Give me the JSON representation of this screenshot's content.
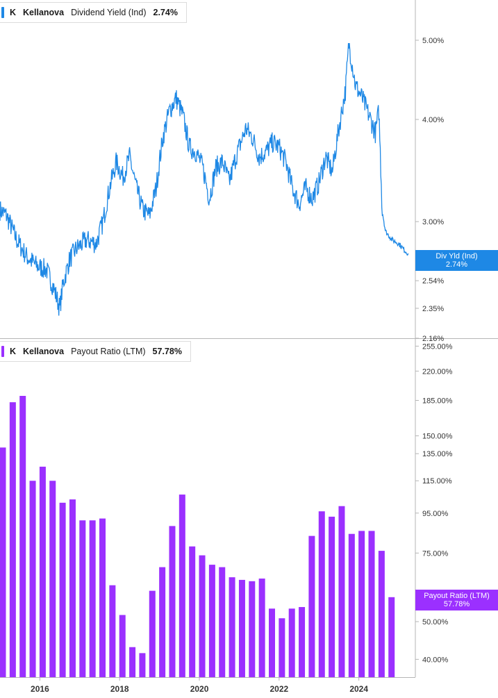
{
  "colors": {
    "dividend_line": "#1e88e5",
    "payout_bar": "#9b30ff",
    "axis": "#b5b5b5",
    "label": "#333333"
  },
  "top_legend": {
    "ticker": "K",
    "company": "Kellanova",
    "metric": "Dividend Yield (Ind)",
    "value": "2.74%"
  },
  "bottom_legend": {
    "ticker": "K",
    "company": "Kellanova",
    "metric": "Payout Ratio (LTM)",
    "value": "57.78%"
  },
  "top_badge": {
    "label": "Div Yld (Ind)",
    "value": "2.74%"
  },
  "bottom_badge": {
    "label": "Payout Ratio (LTM)",
    "value": "57.78%"
  },
  "chart_data": [
    {
      "type": "line",
      "scale": "log",
      "series": [
        {
          "name": "Dividend Yield (Ind)",
          "points": [
            [
              "2015-01",
              3.1
            ],
            [
              "2015-03",
              3.05
            ],
            [
              "2015-06",
              2.85
            ],
            [
              "2015-09",
              2.72
            ],
            [
              "2015-12",
              2.65
            ],
            [
              "2016-03",
              2.62
            ],
            [
              "2016-05",
              2.5
            ],
            [
              "2016-07",
              2.35
            ],
            [
              "2016-08",
              2.52
            ],
            [
              "2016-10",
              2.7
            ],
            [
              "2016-12",
              2.78
            ],
            [
              "2017-03",
              2.85
            ],
            [
              "2017-06",
              2.82
            ],
            [
              "2017-08",
              3.0
            ],
            [
              "2017-10",
              3.3
            ],
            [
              "2017-12",
              3.55
            ],
            [
              "2018-02",
              3.4
            ],
            [
              "2018-04",
              3.6
            ],
            [
              "2018-06",
              3.3
            ],
            [
              "2018-08",
              3.1
            ],
            [
              "2018-10",
              3.05
            ],
            [
              "2018-12",
              3.3
            ],
            [
              "2019-02",
              3.8
            ],
            [
              "2019-04",
              4.1
            ],
            [
              "2019-06",
              4.25
            ],
            [
              "2019-08",
              4.05
            ],
            [
              "2019-10",
              3.7
            ],
            [
              "2019-12",
              3.65
            ],
            [
              "2020-02",
              3.5
            ],
            [
              "2020-04",
              3.2
            ],
            [
              "2020-06",
              3.5
            ],
            [
              "2020-08",
              3.55
            ],
            [
              "2020-10",
              3.35
            ],
            [
              "2020-12",
              3.6
            ],
            [
              "2021-03",
              3.9
            ],
            [
              "2021-05",
              3.8
            ],
            [
              "2021-07",
              3.6
            ],
            [
              "2021-09",
              3.65
            ],
            [
              "2021-11",
              3.75
            ],
            [
              "2022-01",
              3.7
            ],
            [
              "2022-03",
              3.55
            ],
            [
              "2022-05",
              3.3
            ],
            [
              "2022-07",
              3.15
            ],
            [
              "2022-09",
              3.3
            ],
            [
              "2022-11",
              3.2
            ],
            [
              "2023-01",
              3.35
            ],
            [
              "2023-03",
              3.6
            ],
            [
              "2023-05",
              3.45
            ],
            [
              "2023-07",
              3.9
            ],
            [
              "2023-09",
              4.35
            ],
            [
              "2023-10",
              4.95
            ],
            [
              "2023-12",
              4.4
            ],
            [
              "2024-02",
              4.25
            ],
            [
              "2024-04",
              4.05
            ],
            [
              "2024-06",
              3.85
            ],
            [
              "2024-07",
              4.1
            ],
            [
              "2024-08",
              3.1
            ],
            [
              "2024-09",
              2.92
            ],
            [
              "2024-11",
              2.85
            ],
            [
              "2025-01",
              2.82
            ],
            [
              "2025-03",
              2.76
            ],
            [
              "2025-04",
              2.74
            ]
          ]
        }
      ],
      "yticks": [
        "5.00%",
        "4.00%",
        "3.00%",
        "2.54%",
        "2.35%",
        "2.16%"
      ],
      "ylim": [
        2.16,
        5.6
      ],
      "xlim": [
        "2015-01",
        "2025-06"
      ]
    },
    {
      "type": "bar",
      "scale": "log",
      "series": [
        {
          "name": "Payout Ratio (LTM)",
          "points": [
            [
              "2015-01",
              140
            ],
            [
              "2015-04",
              183
            ],
            [
              "2015-07",
              190
            ],
            [
              "2015-10",
              115
            ],
            [
              "2016-01",
              125
            ],
            [
              "2016-04",
              115
            ],
            [
              "2016-07",
              101
            ],
            [
              "2016-10",
              103
            ],
            [
              "2017-01",
              91
            ],
            [
              "2017-04",
              91
            ],
            [
              "2017-07",
              92
            ],
            [
              "2017-10",
              62
            ],
            [
              "2018-01",
              52
            ],
            [
              "2018-04",
              43
            ],
            [
              "2018-07",
              41.5
            ],
            [
              "2018-10",
              60
            ],
            [
              "2019-01",
              69
            ],
            [
              "2019-04",
              88
            ],
            [
              "2019-07",
              106
            ],
            [
              "2019-10",
              78
            ],
            [
              "2020-01",
              74
            ],
            [
              "2020-04",
              70
            ],
            [
              "2020-07",
              69
            ],
            [
              "2020-10",
              65
            ],
            [
              "2021-01",
              64
            ],
            [
              "2021-04",
              63.5
            ],
            [
              "2021-07",
              64.5
            ],
            [
              "2021-10",
              54
            ],
            [
              "2022-01",
              51
            ],
            [
              "2022-04",
              54
            ],
            [
              "2022-07",
              54.5
            ],
            [
              "2022-10",
              83
            ],
            [
              "2023-01",
              96
            ],
            [
              "2023-04",
              93
            ],
            [
              "2023-07",
              99
            ],
            [
              "2023-10",
              84
            ],
            [
              "2024-01",
              85.5
            ],
            [
              "2024-04",
              85.5
            ],
            [
              "2024-07",
              76
            ],
            [
              "2024-10",
              57.78
            ]
          ]
        }
      ],
      "yticks": [
        "255.00%",
        "220.00%",
        "185.00%",
        "150.00%",
        "135.00%",
        "115.00%",
        "95.00%",
        "75.00%",
        "55.00%",
        "50.00%",
        "40.00%"
      ],
      "ylim": [
        36,
        265
      ],
      "xlim": [
        "2015-01",
        "2025-06"
      ]
    }
  ],
  "x_axis_labels": [
    "2016",
    "2018",
    "2020",
    "2022",
    "2024"
  ]
}
